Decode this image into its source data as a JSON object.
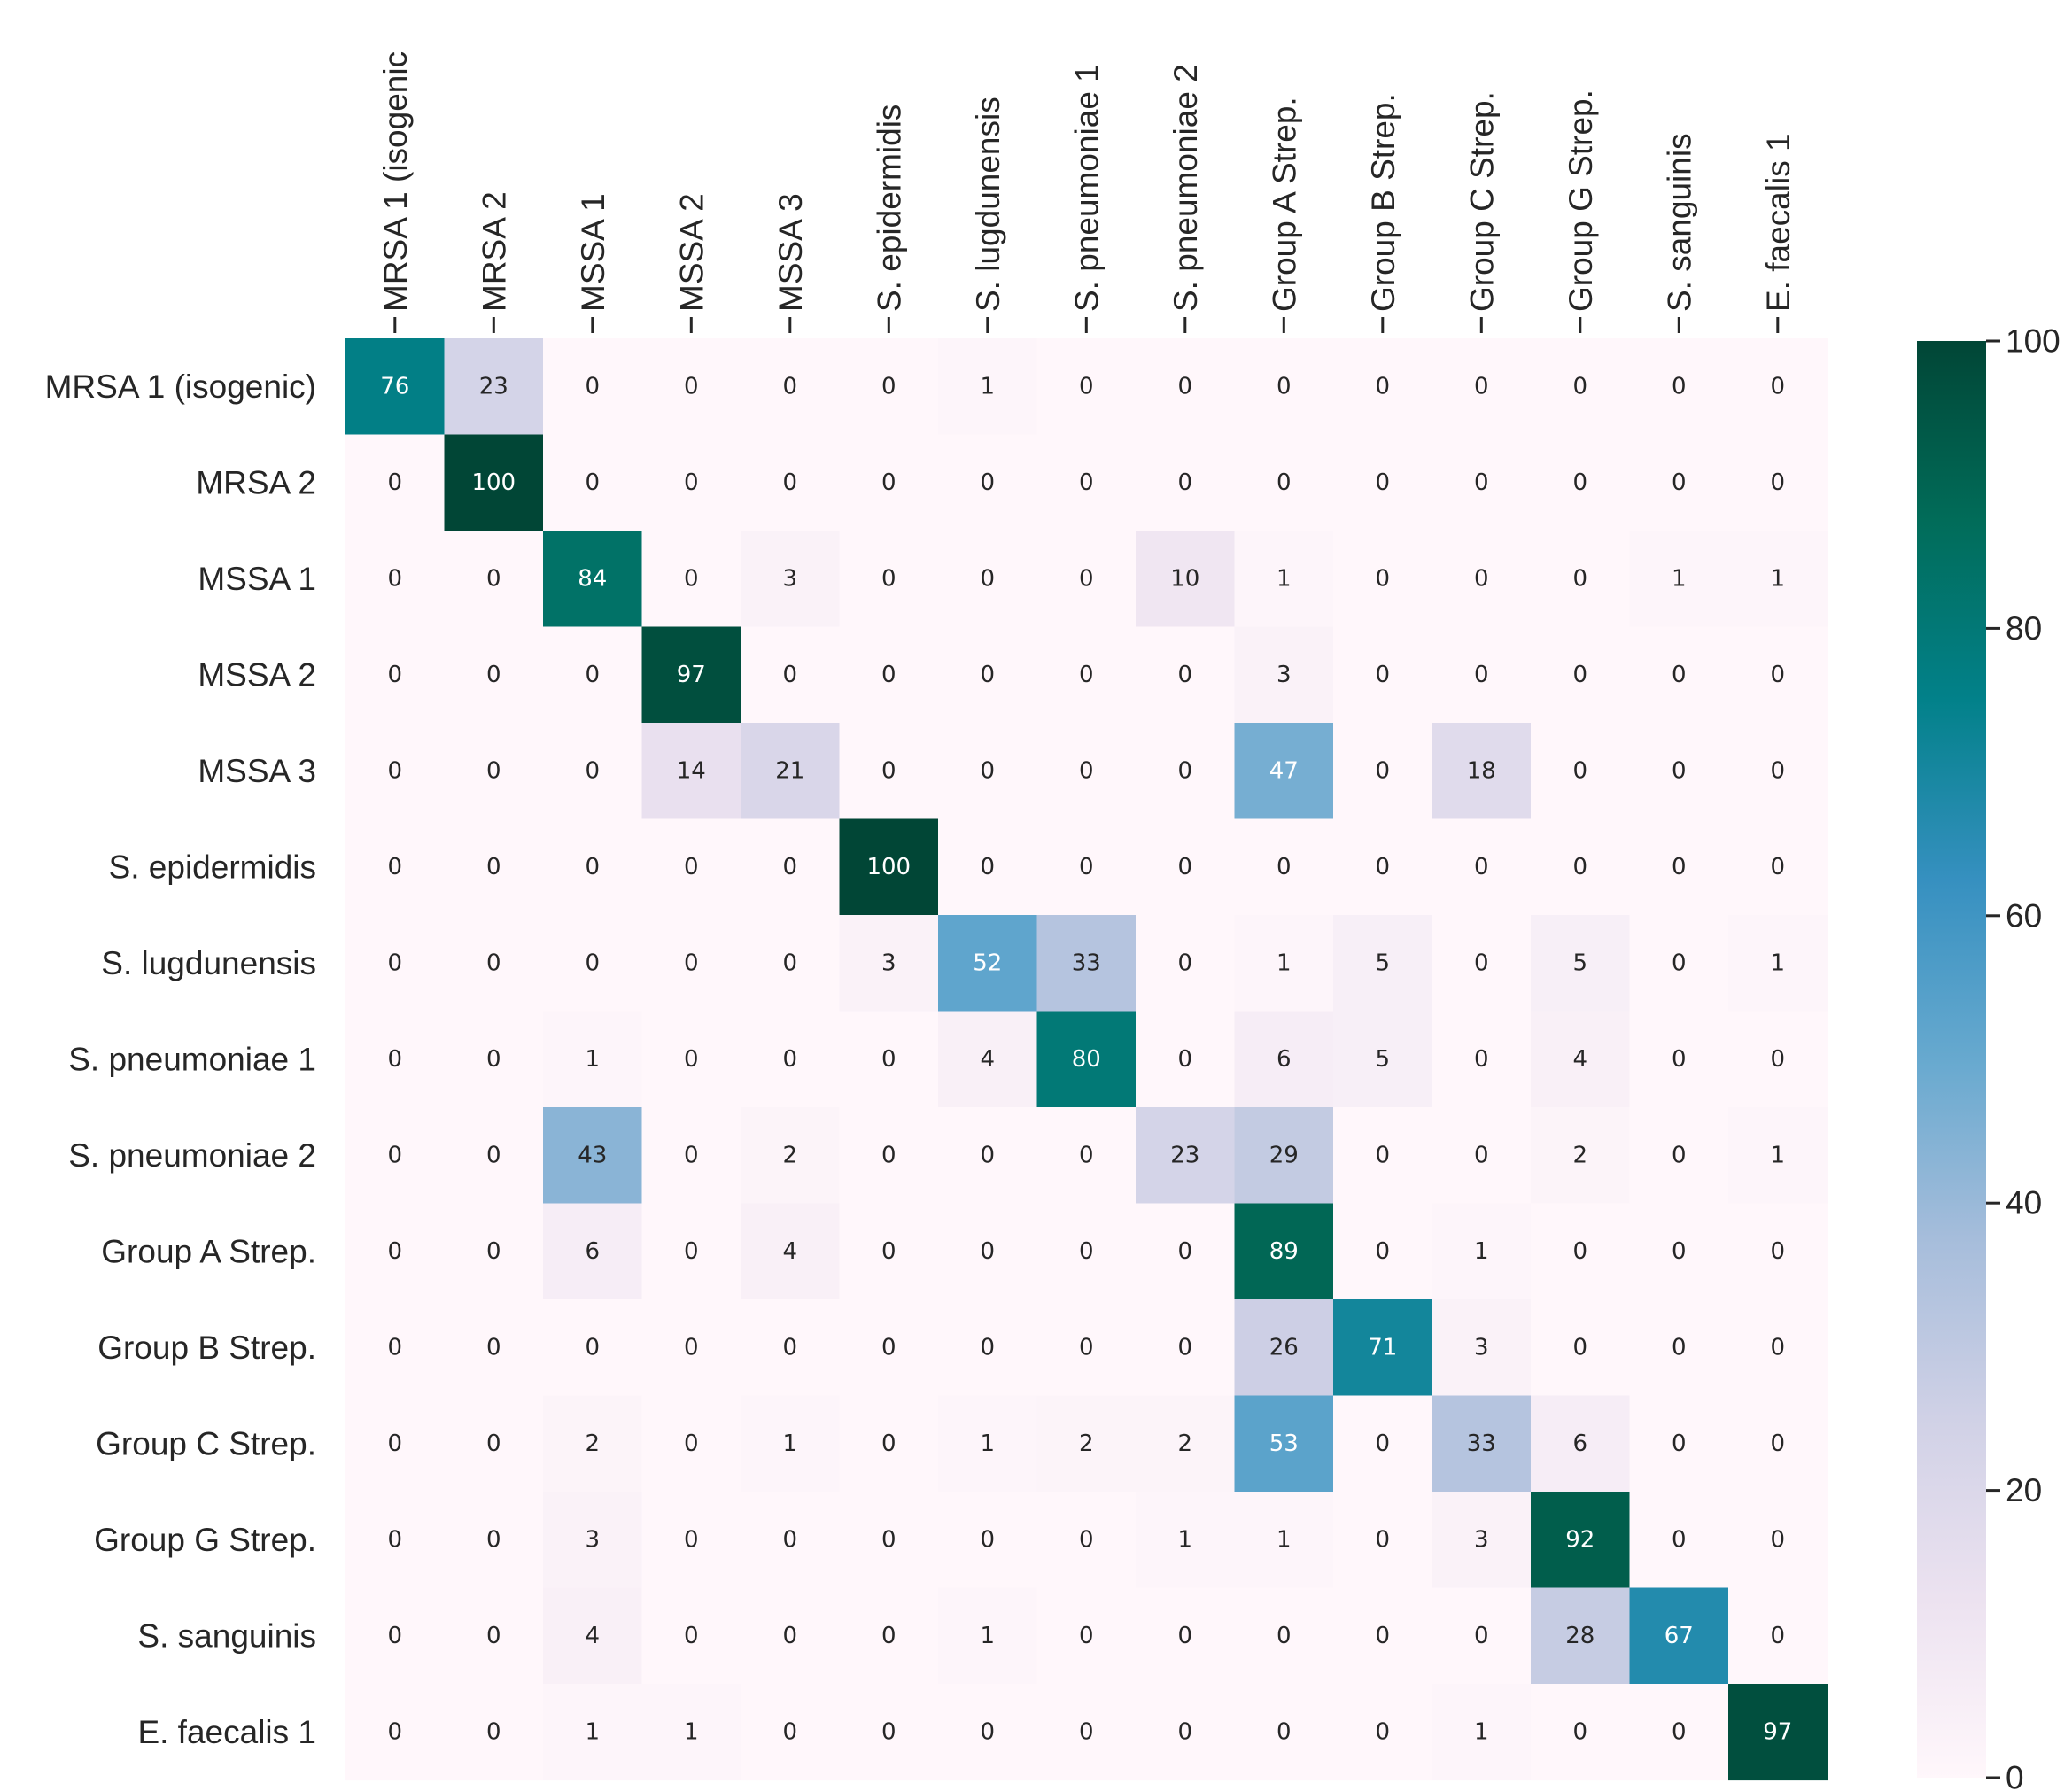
{
  "chart_data": {
    "type": "heatmap",
    "title": "",
    "xlabel": "",
    "ylabel": "",
    "colormap": "PuBuGn",
    "vmin": 0,
    "vmax": 100,
    "row_labels": [
      "MRSA 1 (isogenic)",
      "MRSA 2",
      "MSSA 1",
      "MSSA 2",
      "MSSA 3",
      "S. epidermidis",
      "S. lugdunensis",
      "S. pneumoniae 1",
      "S. pneumoniae 2",
      "Group A Strep.",
      "Group B Strep.",
      "Group C Strep.",
      "Group G Strep.",
      "S. sanguinis",
      "E. faecalis 1"
    ],
    "col_labels": [
      "MRSA 1 (isogenic",
      "MRSA 2",
      "MSSA 1",
      "MSSA 2",
      "MSSA 3",
      "S. epidermidis",
      "S. lugdunensis",
      "S. pneumoniae 1",
      "S. pneumoniae 2",
      "Group A Strep.",
      "Group B Strep.",
      "Group C Strep.",
      "Group G Strep.",
      "S. sanguinis",
      "E. faecalis 1"
    ],
    "values": [
      [
        76,
        23,
        0,
        0,
        0,
        0,
        1,
        0,
        0,
        0,
        0,
        0,
        0,
        0,
        0
      ],
      [
        0,
        100,
        0,
        0,
        0,
        0,
        0,
        0,
        0,
        0,
        0,
        0,
        0,
        0,
        0
      ],
      [
        0,
        0,
        84,
        0,
        3,
        0,
        0,
        0,
        10,
        1,
        0,
        0,
        0,
        1,
        1
      ],
      [
        0,
        0,
        0,
        97,
        0,
        0,
        0,
        0,
        0,
        3,
        0,
        0,
        0,
        0,
        0
      ],
      [
        0,
        0,
        0,
        14,
        21,
        0,
        0,
        0,
        0,
        47,
        0,
        18,
        0,
        0,
        0
      ],
      [
        0,
        0,
        0,
        0,
        0,
        100,
        0,
        0,
        0,
        0,
        0,
        0,
        0,
        0,
        0
      ],
      [
        0,
        0,
        0,
        0,
        0,
        3,
        52,
        33,
        0,
        1,
        5,
        0,
        5,
        0,
        1
      ],
      [
        0,
        0,
        1,
        0,
        0,
        0,
        4,
        80,
        0,
        6,
        5,
        0,
        4,
        0,
        0
      ],
      [
        0,
        0,
        43,
        0,
        2,
        0,
        0,
        0,
        23,
        29,
        0,
        0,
        2,
        0,
        1
      ],
      [
        0,
        0,
        6,
        0,
        4,
        0,
        0,
        0,
        0,
        89,
        0,
        1,
        0,
        0,
        0
      ],
      [
        0,
        0,
        0,
        0,
        0,
        0,
        0,
        0,
        0,
        26,
        71,
        3,
        0,
        0,
        0
      ],
      [
        0,
        0,
        2,
        0,
        1,
        0,
        1,
        2,
        2,
        53,
        0,
        33,
        6,
        0,
        0
      ],
      [
        0,
        0,
        3,
        0,
        0,
        0,
        0,
        0,
        1,
        1,
        0,
        3,
        92,
        0,
        0
      ],
      [
        0,
        0,
        4,
        0,
        0,
        0,
        1,
        0,
        0,
        0,
        0,
        0,
        28,
        67,
        0
      ],
      [
        0,
        0,
        1,
        1,
        0,
        0,
        0,
        0,
        0,
        0,
        0,
        1,
        0,
        0,
        97
      ]
    ],
    "colorbar": {
      "ticks": [
        0,
        20,
        40,
        60,
        80,
        100
      ],
      "tick_labels": [
        "0",
        "20",
        "40",
        "60",
        "80",
        "100"
      ]
    }
  }
}
